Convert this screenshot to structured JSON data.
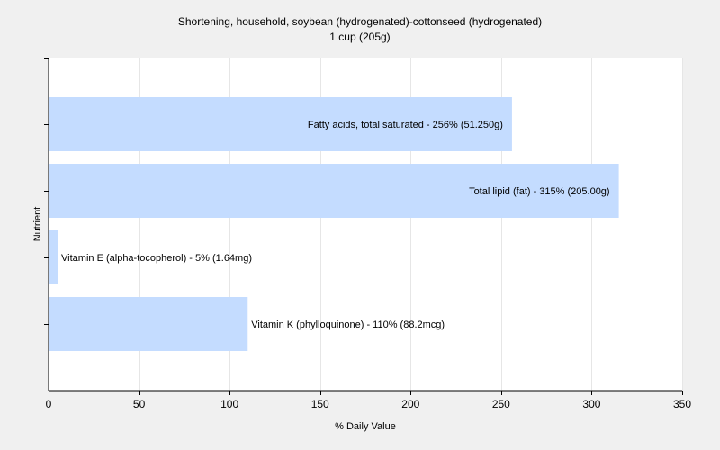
{
  "chart_data": {
    "type": "bar",
    "orientation": "horizontal",
    "title": "Shortening, household, soybean (hydrogenated)-cottonseed (hydrogenated)",
    "subtitle": "1 cup (205g)",
    "xlabel": "% Daily Value",
    "ylabel": "Nutrient",
    "xlim": [
      0,
      350
    ],
    "xticks": [
      0,
      50,
      100,
      150,
      200,
      250,
      300,
      350
    ],
    "grid": true,
    "legend": "none",
    "bar_color": "#c4dcff",
    "categories": [
      "Fatty acids, total saturated",
      "Total lipid (fat)",
      "Vitamin E (alpha-tocopherol)",
      "Vitamin K (phylloquinone)"
    ],
    "values": [
      256,
      315,
      5,
      110
    ],
    "labels": [
      "Fatty acids, total saturated - 256% (51.250g)",
      "Total lipid (fat) - 315% (205.00g)",
      "Vitamin E (alpha-tocopherol) - 5% (1.64mg)",
      "Vitamin K (phylloquinone) - 110% (88.2mcg)"
    ]
  }
}
